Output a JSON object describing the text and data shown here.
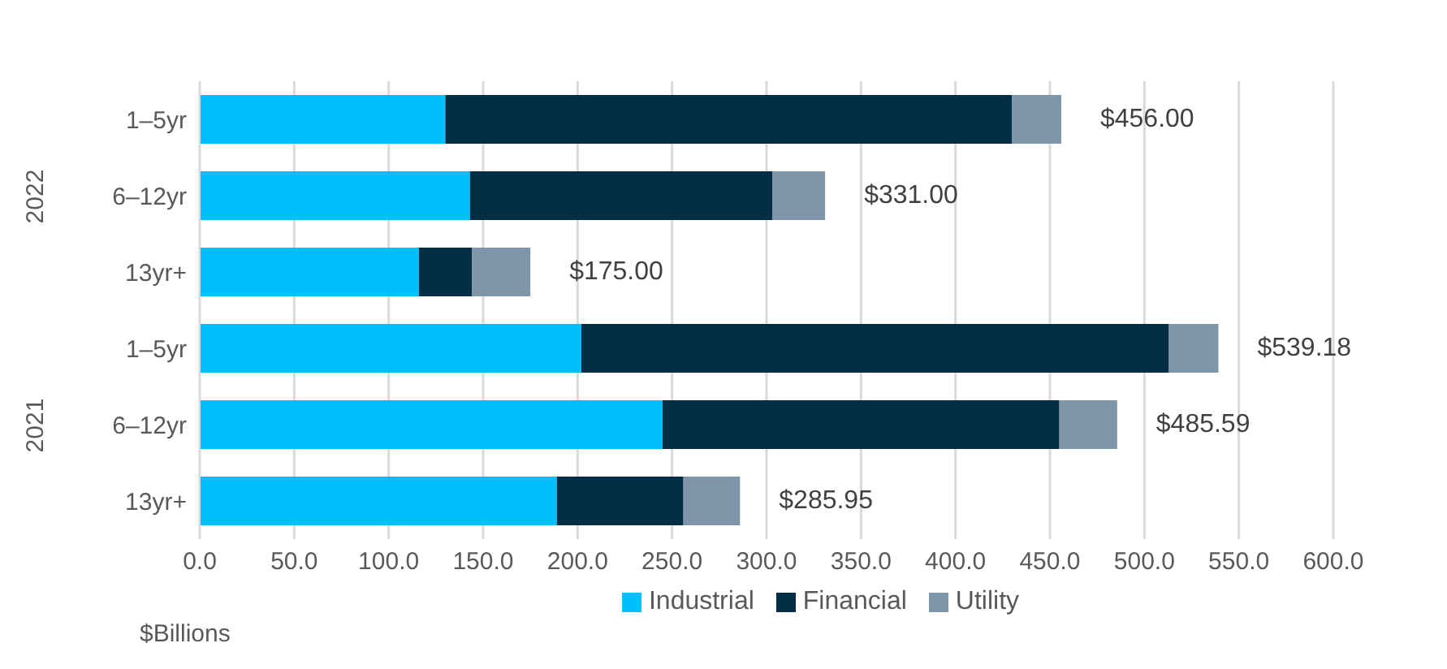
{
  "chart_data": {
    "type": "bar",
    "orientation": "horizontal",
    "stacked": true,
    "categories": [
      "1–5yr",
      "6–12yr",
      "13yr+",
      "1–5yr",
      "6–12yr",
      "13yr+"
    ],
    "series": [
      {
        "name": "Industrial",
        "color": "#00bfff",
        "values": [
          130,
          143,
          116,
          202,
          245,
          189
        ]
      },
      {
        "name": "Financial",
        "color": "#032e45",
        "values": [
          300,
          160,
          28,
          311,
          210,
          67
        ]
      },
      {
        "name": "Utility",
        "color": "#7f96aa",
        "values": [
          26,
          28,
          31,
          26.18,
          30.59,
          29.95
        ]
      }
    ],
    "totals": [
      "$456.00",
      "$331.00",
      "$175.00",
      "$539.18",
      "$485.59",
      "$285.95"
    ],
    "annotations": [
      "2022",
      "2021"
    ],
    "xlabel": "$Billions",
    "xlim": [
      0,
      600
    ],
    "xticks": [
      {
        "value": 0,
        "label": "0.0"
      },
      {
        "value": 50,
        "label": "50.0"
      },
      {
        "value": 100,
        "label": "100.0"
      },
      {
        "value": 150,
        "label": "150.0"
      },
      {
        "value": 200,
        "label": "200.0"
      },
      {
        "value": 250,
        "label": "250.0"
      },
      {
        "value": 300,
        "label": "300.0"
      },
      {
        "value": 350,
        "label": "350.0"
      },
      {
        "value": 400,
        "label": "400.0"
      },
      {
        "value": 450,
        "label": "450.0"
      },
      {
        "value": 500,
        "label": "500.0"
      },
      {
        "value": 550,
        "label": "550.0"
      },
      {
        "value": 600,
        "label": "600.0"
      }
    ],
    "grid": "x",
    "legend": "bottom"
  }
}
